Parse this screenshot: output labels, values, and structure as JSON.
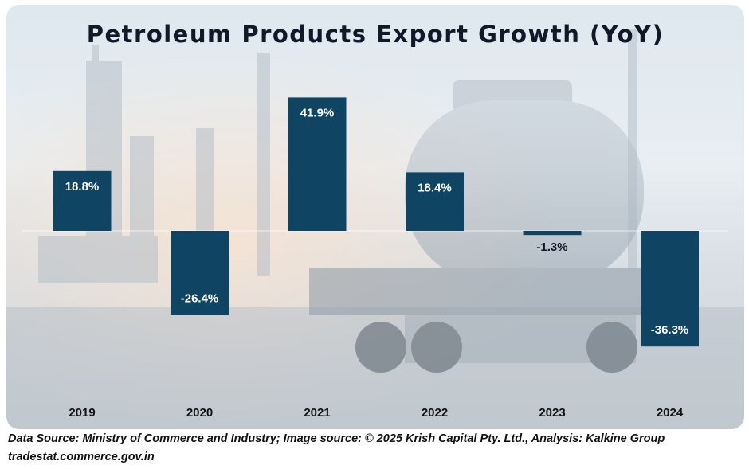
{
  "chart_data": {
    "type": "bar",
    "title": "Petroleum Products Export Growth (YoY)",
    "categories": [
      "2019",
      "2020",
      "2021",
      "2022",
      "2023",
      "2024"
    ],
    "values": [
      18.8,
      -26.4,
      41.9,
      18.4,
      -1.3,
      -36.3
    ],
    "value_labels": [
      "18.8%",
      "-26.4%",
      "41.9%",
      "18.4%",
      "-1.3%",
      "-36.3%"
    ],
    "unit": "%",
    "bar_color": "#0f4563",
    "legend": "none",
    "grid": false
  },
  "footer": {
    "source": "Data Source: Ministry of Commerce and Industry; Image source: © 2025 Krish Capital Pty. Ltd., Analysis: Kalkine Group",
    "url": "tradestat.commerce.gov.in"
  }
}
